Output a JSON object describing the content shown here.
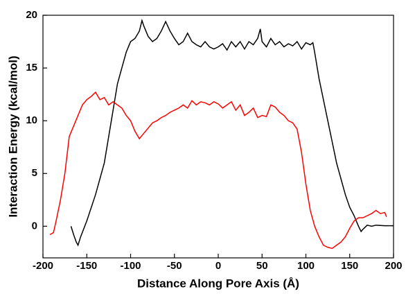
{
  "chart_data": {
    "type": "line",
    "xlabel": "Distance Along Pore Axis (Å)",
    "ylabel": "Interaction Energy (kcal/mol)",
    "xlim": [
      -200,
      200
    ],
    "xticks": [
      -200,
      -150,
      -100,
      -50,
      0,
      50,
      100,
      150,
      200
    ],
    "ylim": [
      -3,
      20
    ],
    "yticks": [
      0,
      5,
      10,
      15,
      20
    ],
    "series": [
      {
        "color": "#000000",
        "x": [
          -168,
          -165,
          -162,
          -160,
          -157,
          -150,
          -140,
          -130,
          -125,
          -120,
          -115,
          -110,
          -105,
          -100,
          -95,
          -90,
          -87,
          -85,
          -80,
          -75,
          -70,
          -65,
          -60,
          -55,
          -50,
          -45,
          -40,
          -35,
          -30,
          -25,
          -20,
          -15,
          -10,
          -5,
          0,
          5,
          10,
          15,
          20,
          25,
          30,
          35,
          40,
          45,
          48,
          50,
          55,
          60,
          65,
          70,
          75,
          80,
          85,
          90,
          95,
          100,
          105,
          108,
          110,
          115,
          120,
          125,
          130,
          135,
          140,
          145,
          150,
          155,
          160,
          163,
          165,
          170,
          175,
          180,
          190,
          200
        ],
        "values": [
          0,
          -0.8,
          -1.5,
          -1.8,
          -1,
          0.5,
          3,
          6,
          8.5,
          11,
          13.5,
          15,
          16.5,
          17.5,
          17.8,
          18.5,
          19.5,
          19,
          18,
          17.5,
          17.8,
          18.5,
          19.4,
          18.5,
          17.8,
          17.2,
          17.5,
          18.3,
          17.5,
          17.2,
          17,
          17.5,
          17,
          16.8,
          17,
          17.3,
          16.7,
          17.5,
          17,
          17.5,
          16.8,
          17.5,
          17.2,
          17.8,
          18.7,
          17.5,
          17,
          17.8,
          17.2,
          17.5,
          17,
          17.3,
          17.1,
          17.5,
          16.8,
          17.4,
          17.2,
          17.4,
          16.5,
          14,
          12,
          10,
          8,
          6,
          4.5,
          3,
          1.8,
          1,
          0,
          -0.5,
          -0.3,
          0.1,
          0,
          0.1,
          0.05,
          0.05
        ]
      },
      {
        "color": "#ff0000",
        "x": [
          -192,
          -188,
          -185,
          -180,
          -175,
          -170,
          -165,
          -160,
          -155,
          -150,
          -145,
          -140,
          -135,
          -130,
          -125,
          -120,
          -115,
          -110,
          -105,
          -100,
          -95,
          -90,
          -85,
          -80,
          -75,
          -70,
          -65,
          -60,
          -55,
          -50,
          -45,
          -40,
          -35,
          -30,
          -25,
          -20,
          -15,
          -10,
          -5,
          0,
          5,
          10,
          15,
          20,
          25,
          30,
          35,
          40,
          45,
          50,
          55,
          60,
          65,
          70,
          75,
          80,
          85,
          90,
          95,
          100,
          105,
          110,
          115,
          120,
          125,
          130,
          135,
          140,
          145,
          150,
          155,
          160,
          165,
          170,
          175,
          180,
          185,
          190,
          192
        ],
        "values": [
          -0.8,
          -0.6,
          0.5,
          2.5,
          5,
          8.5,
          9.5,
          10.5,
          11.5,
          12,
          12.3,
          12.7,
          12,
          12.2,
          11.5,
          11.8,
          11.5,
          11.2,
          10.5,
          10,
          9,
          8.3,
          8.8,
          9.3,
          9.8,
          10,
          10.3,
          10.5,
          10.8,
          11,
          11.2,
          11.5,
          11.2,
          11.9,
          11.5,
          11.8,
          11.7,
          11.5,
          11.8,
          11.6,
          11.2,
          11.5,
          11.8,
          11,
          11.5,
          10.5,
          10.8,
          11.2,
          10.3,
          10.5,
          10.4,
          11.5,
          11.3,
          10.8,
          10.5,
          10,
          9.8,
          9.2,
          7,
          4,
          1.5,
          0,
          -1,
          -1.8,
          -2,
          -2.1,
          -1.8,
          -1.5,
          -1,
          -0.2,
          0.5,
          0.8,
          0.8,
          1,
          1.2,
          1.5,
          1.2,
          1.3,
          0.9
        ]
      }
    ]
  }
}
